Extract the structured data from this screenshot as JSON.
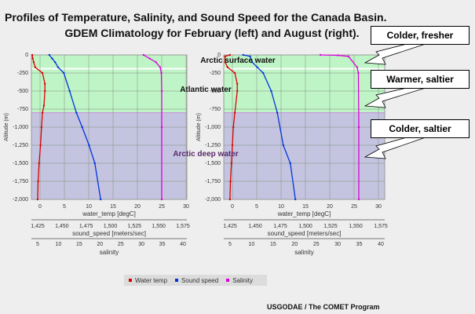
{
  "title": {
    "line1": "Profiles of Temperature, Salinity, and Sound Speed for the Canada Basin.",
    "line2": "GDEM Climatology for February (left) and August (right)."
  },
  "callouts": [
    "Colder, fresher",
    "Warmer, saltier",
    "Colder, saltier"
  ],
  "zones": [
    "Arctic surface water",
    "Atlantic water",
    "Arctic deep water"
  ],
  "legend": [
    {
      "label": "Water temp",
      "color": "#dd0000"
    },
    {
      "label": "Sound speed",
      "color": "#0033dd"
    },
    {
      "label": "Salinity",
      "color": "#dd00dd"
    }
  ],
  "credit": "USGODAE / The COMET Program",
  "axes": {
    "ylabel": "Altitude (m)",
    "yticks": [
      "0",
      "-250",
      "-500",
      "-750",
      "-1,000",
      "-1,250",
      "-1,500",
      "-1,750",
      "-2,000"
    ],
    "temp_label": "water_temp [degC]",
    "temp_ticks": [
      "0",
      "5",
      "10",
      "15",
      "20",
      "25",
      "30"
    ],
    "sound_label": "sound_speed [meters/sec]",
    "sound_ticks": [
      "1,425",
      "1,450",
      "1,475",
      "1,500",
      "1,525",
      "1,550",
      "1,575"
    ],
    "sal_label": "salinity",
    "sal_ticks": [
      "5",
      "10",
      "15",
      "20",
      "25",
      "30",
      "35",
      "40"
    ]
  },
  "chart_data": [
    {
      "type": "line",
      "title": "February",
      "ylabel": "Altitude (m)",
      "ylim": [
        -2000,
        0
      ],
      "xlabel": [
        "water_temp [degC]",
        "sound_speed [meters/sec]",
        "salinity"
      ],
      "zones": [
        {
          "name": "Arctic surface water",
          "range": [
            -180,
            0
          ]
        },
        {
          "name": "Atlantic water",
          "range": [
            -800,
            -180
          ]
        },
        {
          "name": "Arctic deep water",
          "range": [
            -2000,
            -800
          ]
        }
      ],
      "series": [
        {
          "name": "Water temp",
          "x": [
            -1.6,
            -1.5,
            -1.3,
            -1.0,
            0.5,
            1.0,
            1.0,
            0.8,
            0.5,
            0.3,
            0.1,
            -0.2,
            -0.4,
            -0.5
          ],
          "depth": [
            0,
            -50,
            -100,
            -170,
            -250,
            -400,
            -500,
            -700,
            -800,
            -1000,
            -1250,
            -1500,
            -1750,
            -2000
          ]
        },
        {
          "name": "Sound speed",
          "x": [
            1437,
            1440,
            1443,
            1446,
            1452,
            1458,
            1465,
            1471,
            1478,
            1484,
            1490
          ],
          "depth": [
            0,
            -50,
            -100,
            -170,
            -250,
            -500,
            -800,
            -1000,
            -1250,
            -1500,
            -2000
          ]
        },
        {
          "name": "Salinity",
          "x": [
            30.5,
            32.0,
            33.5,
            34.5,
            34.8,
            34.9,
            34.9,
            34.9
          ],
          "depth": [
            0,
            -50,
            -100,
            -170,
            -250,
            -500,
            -1000,
            -2000
          ]
        }
      ]
    },
    {
      "type": "line",
      "title": "August",
      "ylabel": "Altitude (m)",
      "ylim": [
        -2000,
        0
      ],
      "xlabel": [
        "water_temp [degC]",
        "sound_speed [meters/sec]",
        "salinity"
      ],
      "zones": [
        {
          "name": "Arctic surface water",
          "range": [
            -180,
            0
          ]
        },
        {
          "name": "Atlantic water",
          "range": [
            -800,
            -180
          ]
        },
        {
          "name": "Arctic deep water",
          "range": [
            -2000,
            -800
          ]
        }
      ],
      "series": [
        {
          "name": "Water temp",
          "x": [
            -0.5,
            -1.5,
            -1.5,
            -1.0,
            0.5,
            1.0,
            1.0,
            0.5,
            0.2,
            0.0,
            -0.2,
            -0.4,
            -0.5
          ],
          "depth": [
            0,
            -20,
            -100,
            -170,
            -250,
            -400,
            -500,
            -800,
            -1000,
            -1250,
            -1500,
            -1750,
            -2000
          ]
        },
        {
          "name": "Sound speed",
          "x": [
            1438,
            1445,
            1447,
            1452,
            1458,
            1466,
            1472,
            1478,
            1485,
            1490
          ],
          "depth": [
            0,
            -20,
            -100,
            -170,
            -250,
            -500,
            -800,
            -1250,
            -1500,
            -2000
          ]
        },
        {
          "name": "Salinity",
          "x": [
            26.0,
            30.0,
            32.5,
            34.5,
            34.8,
            34.9,
            34.9
          ],
          "depth": [
            0,
            -5,
            -20,
            -170,
            -250,
            -1000,
            -2000
          ]
        }
      ]
    }
  ]
}
